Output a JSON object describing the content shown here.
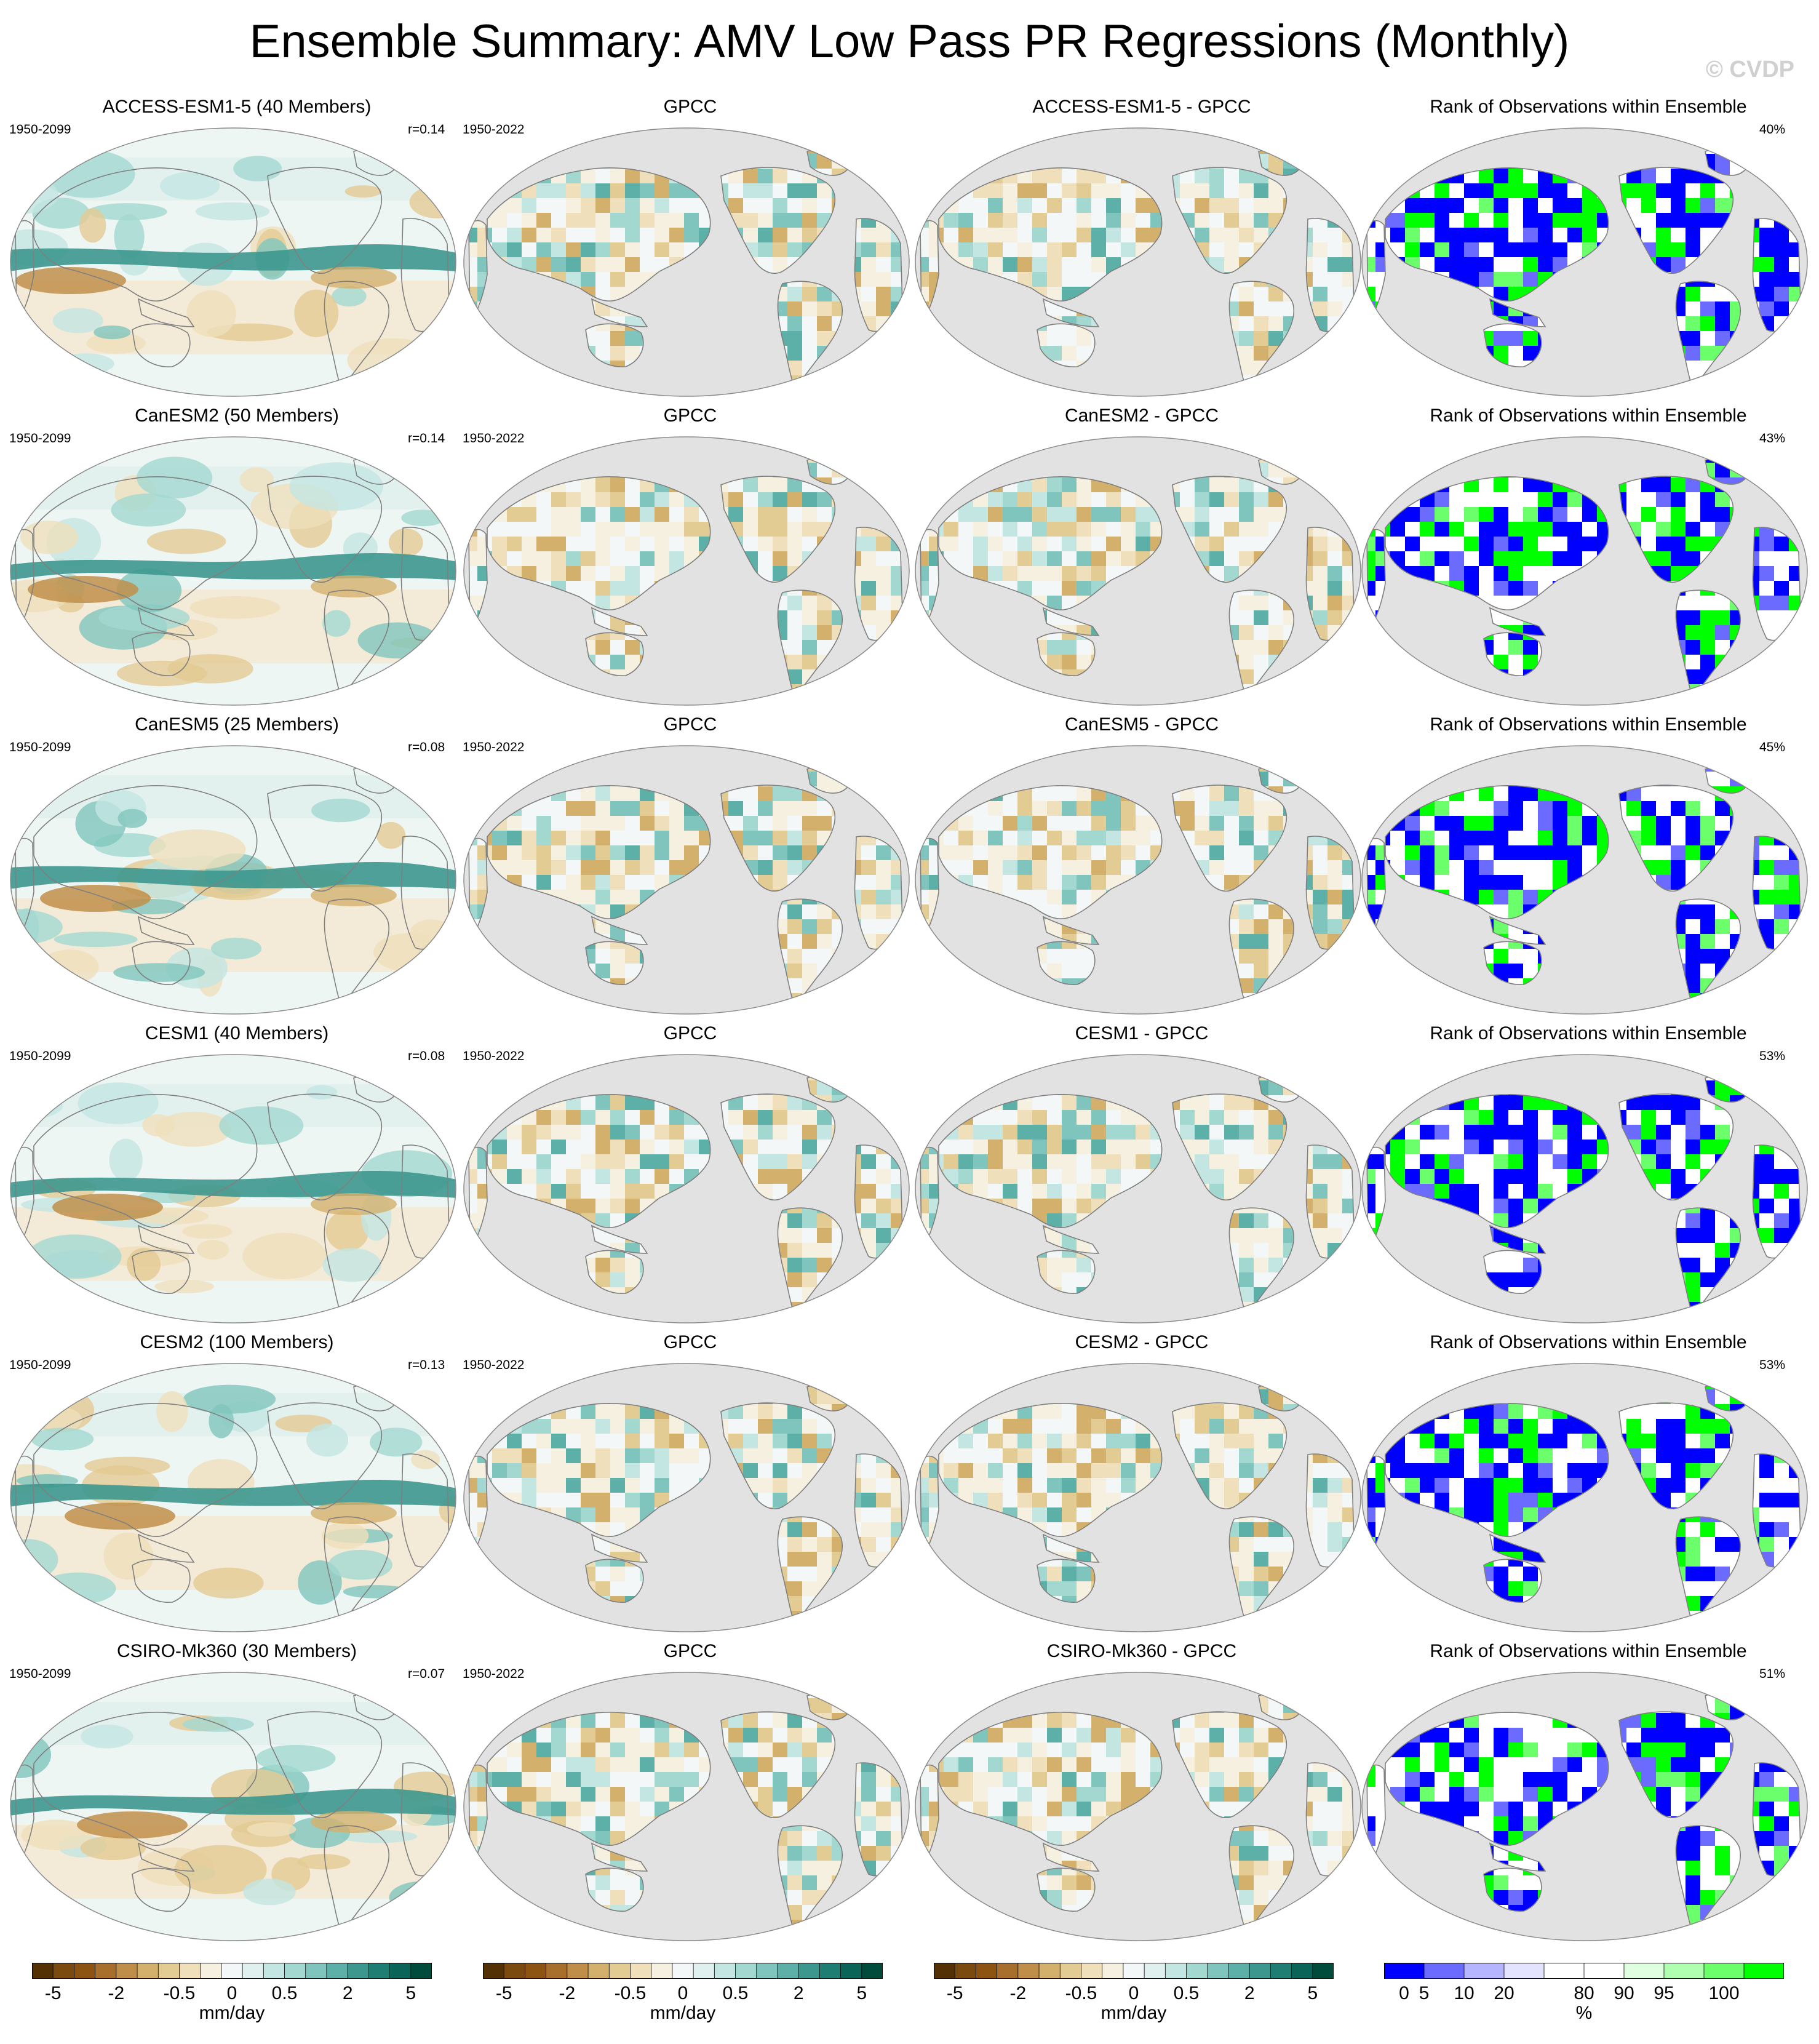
{
  "figure": {
    "title": "Ensemble Summary: AMV Low Pass PR Regressions (Monthly)",
    "copyright": "© CVDP"
  },
  "rows": [
    {
      "model_title": "ACCESS-ESM1-5 (40 Members)",
      "model_period": "1950-2099",
      "r_value": "r=0.14",
      "obs_title": "GPCC",
      "obs_period": "1950-2022",
      "diff_title": "ACCESS-ESM1-5 - GPCC",
      "rank_title": "Rank of Observations within Ensemble",
      "rank_pct": "40%"
    },
    {
      "model_title": "CanESM2 (50 Members)",
      "model_period": "1950-2099",
      "r_value": "r=0.14",
      "obs_title": "GPCC",
      "obs_period": "1950-2022",
      "diff_title": "CanESM2 - GPCC",
      "rank_title": "Rank of Observations within Ensemble",
      "rank_pct": "43%"
    },
    {
      "model_title": "CanESM5 (25 Members)",
      "model_period": "1950-2099",
      "r_value": "r=0.08",
      "obs_title": "GPCC",
      "obs_period": "1950-2022",
      "diff_title": "CanESM5 - GPCC",
      "rank_title": "Rank of Observations within Ensemble",
      "rank_pct": "45%"
    },
    {
      "model_title": "CESM1 (40 Members)",
      "model_period": "1950-2099",
      "r_value": "r=0.08",
      "obs_title": "GPCC",
      "obs_period": "1950-2022",
      "diff_title": "CESM1 - GPCC",
      "rank_title": "Rank of Observations within Ensemble",
      "rank_pct": "53%"
    },
    {
      "model_title": "CESM2 (100 Members)",
      "model_period": "1950-2099",
      "r_value": "r=0.13",
      "obs_title": "GPCC",
      "obs_period": "1950-2022",
      "diff_title": "CESM2 - GPCC",
      "rank_title": "Rank of Observations within Ensemble",
      "rank_pct": "53%"
    },
    {
      "model_title": "CSIRO-Mk360 (30 Members)",
      "model_period": "1950-2099",
      "r_value": "r=0.07",
      "obs_title": "GPCC",
      "obs_period": "1950-2022",
      "diff_title": "CSIRO-Mk360 - GPCC",
      "rank_title": "Rank of Observations within Ensemble",
      "rank_pct": "51%"
    }
  ],
  "colorbars": {
    "precip": {
      "label": "mm/day",
      "colors": [
        "#543005",
        "#7a4a0e",
        "#8c5410",
        "#a86e2c",
        "#bf8f4a",
        "#d4b06d",
        "#e3cb94",
        "#efe0bb",
        "#f6f0e1",
        "#f4f7f7",
        "#e0f0ef",
        "#c3e6e2",
        "#a3d8d1",
        "#7fc5bd",
        "#5cb0a7",
        "#3c978e",
        "#1f7e74",
        "#0a6458",
        "#004c3c"
      ],
      "tick_labels": [
        "-5",
        "-2",
        "-0.5",
        "0",
        "0.5",
        "2",
        "5"
      ],
      "tick_edges": [
        1,
        4,
        7,
        9.5,
        12,
        15,
        18
      ]
    },
    "rank": {
      "label": "%",
      "colors": [
        "#0000ff",
        "#6b6bff",
        "#b5b5ff",
        "#e3e3ff",
        "#ffffff",
        "#ffffff",
        "#e0ffe0",
        "#b0ffb0",
        "#6bff6b",
        "#00ff00"
      ],
      "tick_labels": [
        "0",
        "5",
        "10",
        "20",
        "80",
        "90",
        "95",
        "100"
      ],
      "tick_edges": [
        0.5,
        1,
        2,
        3,
        5,
        6,
        7,
        8.5
      ]
    }
  },
  "style": {
    "land_gray": "#e2e2e2",
    "coast_color": "#7f7f7f"
  }
}
